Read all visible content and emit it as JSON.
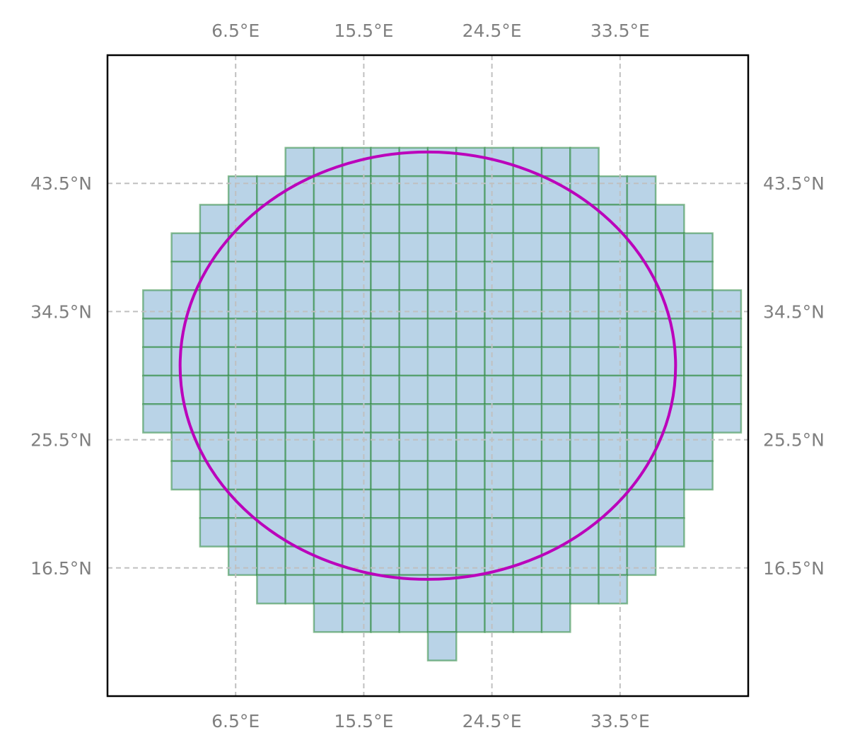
{
  "map": {
    "type": "gridded-cells-map",
    "lon_ticks": [
      {
        "value": 6.5,
        "label": "6.5°E"
      },
      {
        "value": 15.5,
        "label": "15.5°E"
      },
      {
        "value": 24.5,
        "label": "24.5°E"
      },
      {
        "value": 33.5,
        "label": "33.5°E"
      }
    ],
    "lat_ticks": [
      {
        "value": 43.5,
        "label": "43.5°N"
      },
      {
        "value": 34.5,
        "label": "34.5°N"
      },
      {
        "value": 25.5,
        "label": "25.5°N"
      },
      {
        "value": 16.5,
        "label": "16.5°N"
      }
    ],
    "extent": {
      "lon": [
        -2.5,
        42.5
      ],
      "lat": [
        7.5,
        52.5
      ]
    },
    "gridlines": {
      "visible": true,
      "style": "dashed",
      "color": "#c0c0c0"
    },
    "cell_size_deg": 2,
    "cell_fill_color": "#b9d3e7",
    "cell_edge_color": "#2e8b3e",
    "cell_rows": [
      {
        "lat_min": 44,
        "lat_max": 46,
        "lon_min": 10,
        "lon_max": 32
      },
      {
        "lat_min": 42,
        "lat_max": 44,
        "lon_min": 6,
        "lon_max": 36
      },
      {
        "lat_min": 40,
        "lat_max": 42,
        "lon_min": 4,
        "lon_max": 38
      },
      {
        "lat_min": 38,
        "lat_max": 40,
        "lon_min": 2,
        "lon_max": 40
      },
      {
        "lat_min": 36,
        "lat_max": 38,
        "lon_min": 2,
        "lon_max": 40
      },
      {
        "lat_min": 34,
        "lat_max": 36,
        "lon_min": 0,
        "lon_max": 42
      },
      {
        "lat_min": 32,
        "lat_max": 34,
        "lon_min": 0,
        "lon_max": 42
      },
      {
        "lat_min": 30,
        "lat_max": 32,
        "lon_min": 0,
        "lon_max": 42
      },
      {
        "lat_min": 28,
        "lat_max": 30,
        "lon_min": 0,
        "lon_max": 42
      },
      {
        "lat_min": 26,
        "lat_max": 28,
        "lon_min": 0,
        "lon_max": 42
      },
      {
        "lat_min": 24,
        "lat_max": 26,
        "lon_min": 2,
        "lon_max": 40
      },
      {
        "lat_min": 22,
        "lat_max": 24,
        "lon_min": 2,
        "lon_max": 40
      },
      {
        "lat_min": 20,
        "lat_max": 22,
        "lon_min": 4,
        "lon_max": 38
      },
      {
        "lat_min": 18,
        "lat_max": 20,
        "lon_min": 4,
        "lon_max": 38
      },
      {
        "lat_min": 16,
        "lat_max": 18,
        "lon_min": 6,
        "lon_max": 36
      },
      {
        "lat_min": 14,
        "lat_max": 16,
        "lon_min": 8,
        "lon_max": 34
      },
      {
        "lat_min": 12,
        "lat_max": 14,
        "lon_min": 12,
        "lon_max": 30
      },
      {
        "lat_min": 10,
        "lat_max": 12,
        "lon_min": 20,
        "lon_max": 22
      }
    ],
    "circle": {
      "center_lon": 20,
      "center_lat": 30.7,
      "radius_lon": 17.4,
      "radius_lat": 15,
      "color": "#bb00bb"
    }
  }
}
